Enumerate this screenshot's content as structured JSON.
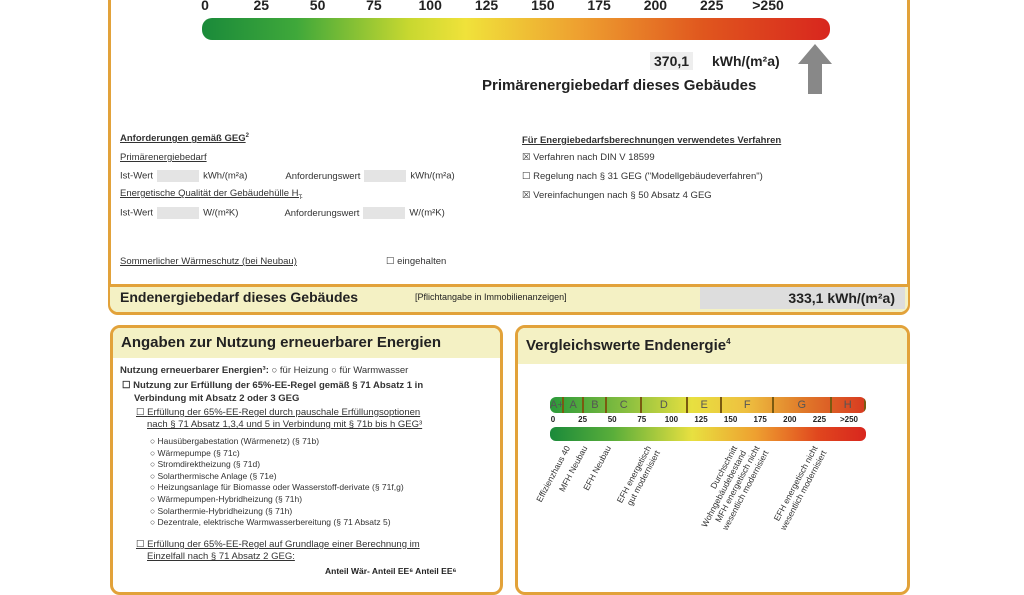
{
  "primary_scale": {
    "ticks": [
      "0",
      "25",
      "50",
      "75",
      "100",
      "125",
      "150",
      "175",
      "200",
      "225",
      ">250"
    ],
    "value": "370,1",
    "unit": "kWh/(m²a)",
    "label": "Primärenergiebedarf dieses Gebäudes"
  },
  "requirements": {
    "title": "Anforderungen gemäß GEG",
    "footnote": "2",
    "primary_heading": "Primärenergiebedarf",
    "ist": "Ist-Wert",
    "unit1": "kWh/(m²a)",
    "anf": "Anforderungswert",
    "hull_heading": "Energetische Qualität der Gebäudehülle H",
    "hull_footnote": "T",
    "unit2": "W/(m²K)",
    "summer": "Sommerlicher Wärmeschutz (bei Neubau)",
    "summer_option": "eingehalten"
  },
  "method": {
    "title": "Für Energiebedarfsberechnungen verwendetes Verfahren",
    "items": [
      {
        "label": "Verfahren nach DIN V 18599",
        "checked": true
      },
      {
        "label": "Regelung nach § 31 GEG (\"Modellgebäudeverfahren\")",
        "checked": false
      },
      {
        "label": "Vereinfachungen nach § 50 Absatz 4 GEG",
        "checked": true
      }
    ]
  },
  "end_energy": {
    "label": "Endenergiebedarf dieses Gebäudes",
    "note": "[Pflichtangabe in Immobilienanzeigen]",
    "value": "333,1 kWh/(m²a)"
  },
  "renewables": {
    "title": "Angaben zur Nutzung erneuerbarer Energien",
    "usage_label": "Nutzung erneuerbarer Energien³:",
    "opt_heating": "für Heizung",
    "opt_water": "für Warmwasser",
    "rule_line1": "Nutzung zur Erfüllung der 65%-EE-Regel gemäß § 71 Absatz 1 in",
    "rule_line2": "Verbindung mit Absatz 2 oder 3 GEG",
    "flat_line1": "Erfüllung der 65%-EE-Regel durch pauschale Erfüllungsoptionen",
    "flat_line2": "nach § 71 Absatz 1,3,4 und 5 in Verbindung mit § 71b bis h GEG³",
    "options": [
      "Hausübergabestation (Wärmenetz) (§ 71b)",
      "Wärmepumpe (§ 71c)",
      "Stromdirektheizung (§ 71d)",
      "Solarthermische Anlage (§ 71e)",
      "Heizungsanlage für Biomasse oder Wasserstoff-derivate (§ 71f,g)",
      "Wärmepumpen-Hybridheizung (§ 71h)",
      "Solarthermie-Hybridheizung (§ 71h)",
      "Dezentrale, elektrische Warmwasserbereitung (§ 71 Absatz 5)"
    ],
    "calc_line1": "Erfüllung der 65%-EE-Regel auf Grundlage einer Berechnung im",
    "calc_line2": "Einzelfall nach § 71 Absatz 2 GEG:",
    "col_header": "Anteil Wär- Anteil EE⁶  Anteil EE⁶"
  },
  "comparison": {
    "title": "Vergleichswerte Endenergie",
    "footnote": "4",
    "classes": [
      "A+",
      "A",
      "B",
      "C",
      "D",
      "E",
      "F",
      "G",
      "H"
    ],
    "ticks": [
      "0",
      "25",
      "50",
      "75",
      "100",
      "125",
      "150",
      "175",
      "200",
      "225",
      ">250"
    ],
    "references": [
      {
        "label": "Effizienzhaus 40",
        "value": 10
      },
      {
        "label": "MFH Neubau",
        "value": 25
      },
      {
        "label": "EFH Neubau",
        "value": 45
      },
      {
        "label": "EFH energetisch\ngut modernisiert",
        "value": 80
      },
      {
        "label": "Durchschnitt\nWohngebäudebestand",
        "value": 155
      },
      {
        "label": "MFH energetisch nicht\nwesentlich modernisiert",
        "value": 175
      },
      {
        "label": "EFH energetisch nicht\nwesentlich modernisiert",
        "value": 225
      }
    ]
  },
  "colors": {
    "border": "#e2a23a",
    "header_bg": "#f4f1c4",
    "gradient": [
      "#1a8a3a",
      "#9cc82a",
      "#f0e23a",
      "#e88a2a",
      "#d8261e"
    ]
  }
}
